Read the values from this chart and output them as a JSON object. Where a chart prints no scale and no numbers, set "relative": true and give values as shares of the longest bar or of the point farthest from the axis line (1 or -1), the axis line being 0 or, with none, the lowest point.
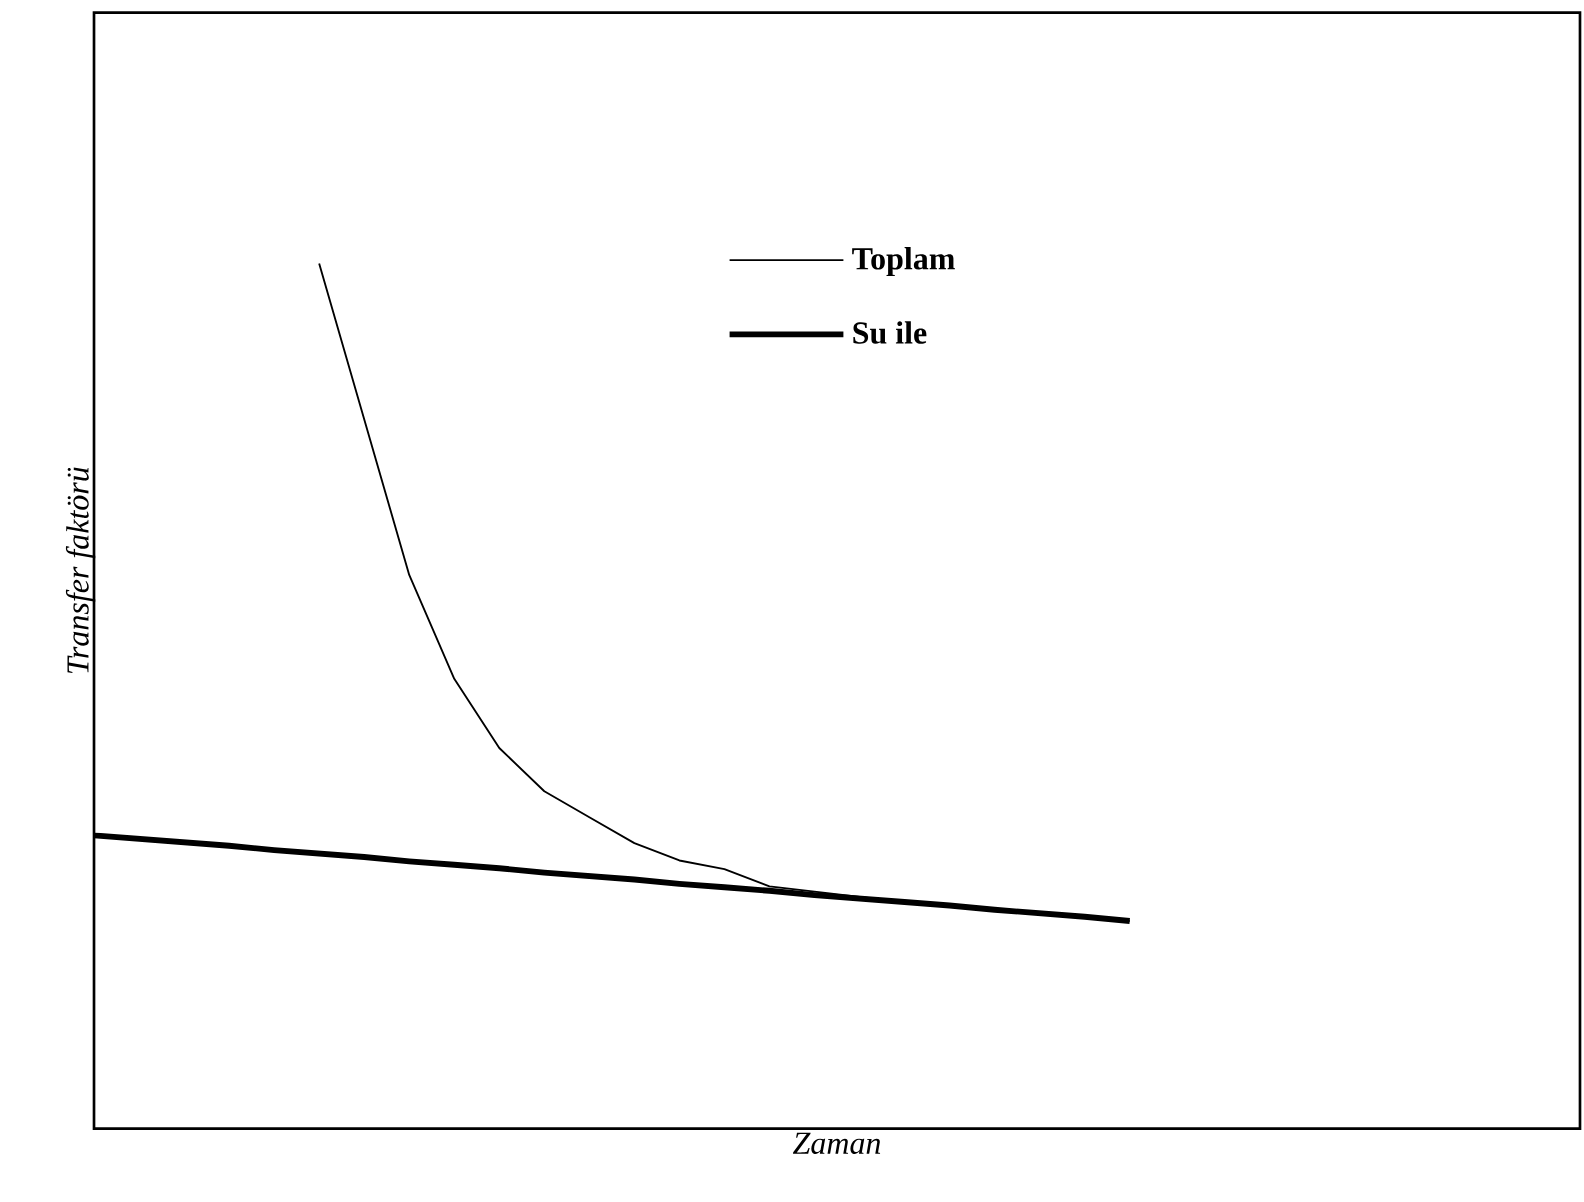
{
  "chart_data": {
    "type": "line",
    "relative": true,
    "xlabel": "Zaman",
    "ylabel": "Transfer faktörü",
    "legend": "top",
    "marker": "none",
    "line_style": "solid",
    "categories": [
      null,
      null,
      null,
      null,
      null,
      null,
      null,
      null,
      null,
      null,
      null,
      null,
      null,
      null,
      null,
      null,
      null,
      null,
      null,
      null,
      null,
      null,
      null,
      null,
      null,
      null,
      null,
      null,
      null,
      null,
      null,
      null,
      null,
      null
    ],
    "series": [
      {
        "name": "Toplam",
        "color": "#000000",
        "values": [
          null,
          null,
          null,
          null,
          null,
          1.0,
          0.82,
          0.64,
          0.52,
          0.44,
          0.39,
          0.36,
          0.33,
          0.31,
          0.3,
          0.28,
          0.274,
          0.268,
          0.262,
          0.258,
          0.253,
          0.249,
          0.245,
          0.24,
          null,
          null,
          null,
          null,
          null,
          null,
          null,
          null,
          null,
          null
        ]
      },
      {
        "name": "Su ile",
        "color": "#000000",
        "values": [
          0.339,
          0.335,
          0.331,
          0.327,
          0.322,
          0.318,
          0.314,
          0.309,
          0.305,
          0.301,
          0.296,
          0.292,
          0.288,
          0.283,
          0.279,
          0.275,
          0.27,
          0.266,
          0.262,
          0.258,
          0.253,
          0.249,
          0.245,
          0.24,
          null,
          null,
          null,
          null,
          null,
          null,
          null,
          null,
          null,
          null
        ]
      }
    ]
  }
}
